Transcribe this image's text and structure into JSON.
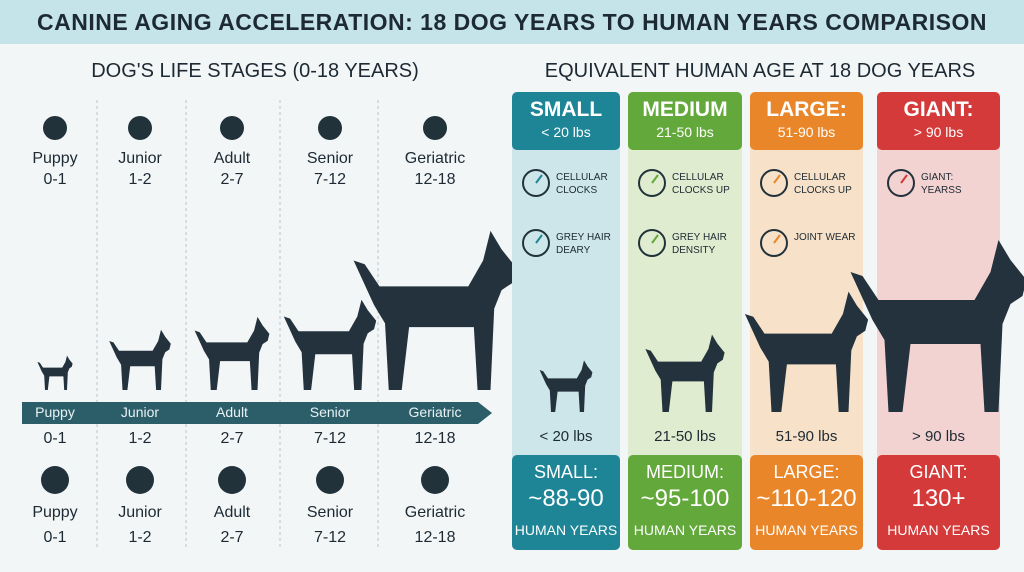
{
  "title": "CANINE AGING ACCELERATION: 18 DOG YEARS TO HUMAN YEARS COMPARISON",
  "left": {
    "heading": "DOG'S LIFE STAGES (0-18 YEARS)",
    "stages": [
      {
        "name": "Puppy",
        "range": "0-1"
      },
      {
        "name": "Junior",
        "range": "1-2"
      },
      {
        "name": "Adult",
        "range": "2-7"
      },
      {
        "name": "Senior",
        "range": "7-12"
      },
      {
        "name": "Geriatric",
        "range": "12-18"
      }
    ]
  },
  "right": {
    "heading": "EQUIVALENT HUMAN AGE AT 18 DOG YEARS",
    "columns": [
      {
        "size": "SMALL",
        "weight": "< 20 lbs",
        "traits": [
          "CELLULAR CLOCKS",
          "GREY HAIR DEARY"
        ],
        "result_label": "SMALL:",
        "result": "~88-90",
        "unit": "HUMAN YEARS",
        "color": "#1e8597",
        "tint": "#cde6ea"
      },
      {
        "size": "MEDIUM",
        "weight": "21-50 lbs",
        "traits": [
          "CELLULAR CLOCKS UP",
          "GREY HAIR DENSITY"
        ],
        "result_label": "MEDIUM:",
        "result": "~95-100",
        "unit": "HUMAN YEARS",
        "color": "#62a83a",
        "tint": "#dfeccf"
      },
      {
        "size": "LARGE:",
        "weight": "51-90 lbs",
        "traits": [
          "CELLULAR CLOCKS UP",
          "JOINT WEAR"
        ],
        "result_label": "LARGE:",
        "result": "~110-120",
        "unit": "HUMAN YEARS",
        "color": "#ea862a",
        "tint": "#f7e1c9"
      },
      {
        "size": "GIANT:",
        "weight": "> 90 lbs",
        "traits": [
          "GIANT: YEARSS"
        ],
        "result_label": "GIANT:",
        "result": "130+",
        "unit": "HUMAN YEARS",
        "color": "#d43a3a",
        "tint": "#f3d2d2"
      }
    ]
  }
}
